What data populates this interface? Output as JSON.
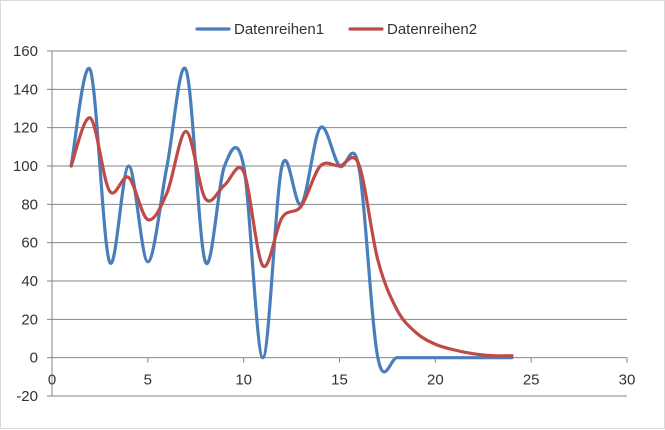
{
  "chart_data": {
    "type": "line",
    "title": "",
    "xlabel": "",
    "ylabel": "",
    "xlim": [
      0,
      30
    ],
    "ylim": [
      -20,
      160
    ],
    "x_ticks": [
      0,
      5,
      10,
      15,
      20,
      25,
      30
    ],
    "y_ticks": [
      -20,
      0,
      20,
      40,
      60,
      80,
      100,
      120,
      140,
      160
    ],
    "x_tick_labels": [
      "0",
      "5",
      "10",
      "15",
      "20",
      "25",
      "30"
    ],
    "y_tick_labels": [
      "-20",
      "0",
      "20",
      "40",
      "60",
      "80",
      "100",
      "120",
      "140",
      "160"
    ],
    "grid": "horizontal",
    "legend_position": "top",
    "smooth": true,
    "series": [
      {
        "name": "Datenreihen1",
        "color": "#4a7ebb",
        "x": [
          1,
          2,
          3,
          4,
          5,
          6,
          7,
          8,
          9,
          10,
          11,
          12,
          13,
          14,
          15,
          16,
          17,
          18,
          19,
          20,
          21,
          22,
          23,
          24
        ],
        "y": [
          100,
          150,
          50,
          100,
          50,
          100,
          150,
          50,
          100,
          100,
          0,
          100,
          80,
          120,
          100,
          100,
          0,
          0,
          0,
          0,
          0,
          0,
          0,
          0
        ]
      },
      {
        "name": "Datenreihen2",
        "color": "#be4b48",
        "x": [
          1,
          2,
          3,
          4,
          5,
          6,
          7,
          8,
          9,
          10,
          11,
          12,
          13,
          14,
          15,
          16,
          17,
          18,
          19,
          20,
          21,
          22,
          23,
          24
        ],
        "y": [
          100,
          125,
          87,
          94,
          72,
          86,
          118,
          83,
          90,
          97,
          48,
          73,
          79,
          100,
          100,
          101,
          51,
          25,
          13,
          7,
          4,
          2,
          1,
          1
        ]
      }
    ]
  }
}
